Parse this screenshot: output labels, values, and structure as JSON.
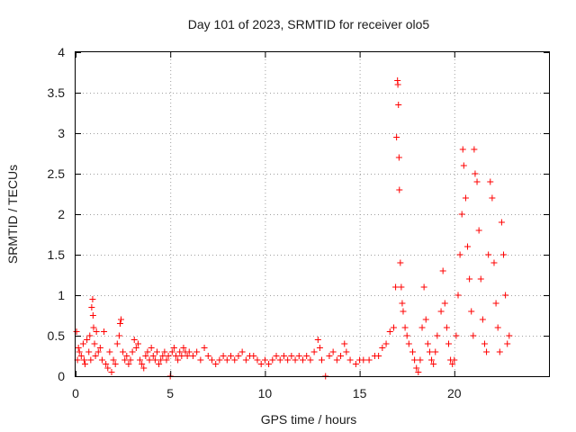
{
  "chart_data": {
    "type": "scatter",
    "title": "Day 101 of 2023, SRMTID for receiver olo5",
    "xlabel": "GPS time / hours",
    "ylabel": "SRMTID / TECUs",
    "xlim": [
      0,
      25
    ],
    "ylim": [
      0,
      4
    ],
    "xticks": [
      0,
      5,
      10,
      15,
      20
    ],
    "xtick_labels": [
      "0",
      "5",
      "10",
      "15",
      "20"
    ],
    "yticks": [
      0,
      0.5,
      1,
      1.5,
      2,
      2.5,
      3,
      3.5,
      4
    ],
    "ytick_labels": [
      "0",
      "0.5",
      "1",
      "1.5",
      "2",
      "2.5",
      "3",
      "3.5",
      "4"
    ],
    "grid": true,
    "marker": "+",
    "color": "#ff0000",
    "series": [
      {
        "name": "olo5",
        "points": [
          [
            0.05,
            0.55
          ],
          [
            0.1,
            0.2
          ],
          [
            0.15,
            0.35
          ],
          [
            0.2,
            0.3
          ],
          [
            0.3,
            0.25
          ],
          [
            0.4,
            0.4
          ],
          [
            0.45,
            0.2
          ],
          [
            0.5,
            0.15
          ],
          [
            0.6,
            0.45
          ],
          [
            0.7,
            0.3
          ],
          [
            0.75,
            0.5
          ],
          [
            0.8,
            0.2
          ],
          [
            0.85,
            0.85
          ],
          [
            0.9,
            0.95
          ],
          [
            0.92,
            0.75
          ],
          [
            0.95,
            0.6
          ],
          [
            1.0,
            0.4
          ],
          [
            1.05,
            0.25
          ],
          [
            1.1,
            0.55
          ],
          [
            1.2,
            0.3
          ],
          [
            1.3,
            0.35
          ],
          [
            1.4,
            0.2
          ],
          [
            1.5,
            0.55
          ],
          [
            1.6,
            0.15
          ],
          [
            1.7,
            0.1
          ],
          [
            1.8,
            0.3
          ],
          [
            1.9,
            0.05
          ],
          [
            2.0,
            0.2
          ],
          [
            2.1,
            0.15
          ],
          [
            2.2,
            0.4
          ],
          [
            2.3,
            0.5
          ],
          [
            2.35,
            0.65
          ],
          [
            2.4,
            0.7
          ],
          [
            2.5,
            0.3
          ],
          [
            2.6,
            0.2
          ],
          [
            2.7,
            0.25
          ],
          [
            2.8,
            0.15
          ],
          [
            2.9,
            0.2
          ],
          [
            3.0,
            0.3
          ],
          [
            3.1,
            0.45
          ],
          [
            3.2,
            0.35
          ],
          [
            3.3,
            0.4
          ],
          [
            3.4,
            0.2
          ],
          [
            3.5,
            0.15
          ],
          [
            3.6,
            0.1
          ],
          [
            3.7,
            0.25
          ],
          [
            3.8,
            0.3
          ],
          [
            3.9,
            0.2
          ],
          [
            4.0,
            0.35
          ],
          [
            4.1,
            0.25
          ],
          [
            4.2,
            0.2
          ],
          [
            4.3,
            0.3
          ],
          [
            4.4,
            0.15
          ],
          [
            4.5,
            0.2
          ],
          [
            4.6,
            0.25
          ],
          [
            4.7,
            0.3
          ],
          [
            4.8,
            0.2
          ],
          [
            4.9,
            0.25
          ],
          [
            5.0,
            0.0
          ],
          [
            5.1,
            0.3
          ],
          [
            5.2,
            0.35
          ],
          [
            5.3,
            0.25
          ],
          [
            5.4,
            0.2
          ],
          [
            5.5,
            0.3
          ],
          [
            5.6,
            0.25
          ],
          [
            5.7,
            0.35
          ],
          [
            5.8,
            0.3
          ],
          [
            5.9,
            0.25
          ],
          [
            6.0,
            0.3
          ],
          [
            6.2,
            0.25
          ],
          [
            6.4,
            0.3
          ],
          [
            6.6,
            0.2
          ],
          [
            6.8,
            0.35
          ],
          [
            7.0,
            0.25
          ],
          [
            7.2,
            0.2
          ],
          [
            7.4,
            0.15
          ],
          [
            7.6,
            0.2
          ],
          [
            7.8,
            0.25
          ],
          [
            8.0,
            0.2
          ],
          [
            8.2,
            0.25
          ],
          [
            8.4,
            0.2
          ],
          [
            8.6,
            0.25
          ],
          [
            8.8,
            0.3
          ],
          [
            9.0,
            0.2
          ],
          [
            9.2,
            0.25
          ],
          [
            9.4,
            0.25
          ],
          [
            9.6,
            0.2
          ],
          [
            9.8,
            0.15
          ],
          [
            10.0,
            0.2
          ],
          [
            10.2,
            0.15
          ],
          [
            10.4,
            0.2
          ],
          [
            10.6,
            0.25
          ],
          [
            10.8,
            0.2
          ],
          [
            11.0,
            0.25
          ],
          [
            11.2,
            0.2
          ],
          [
            11.4,
            0.25
          ],
          [
            11.6,
            0.2
          ],
          [
            11.8,
            0.25
          ],
          [
            12.0,
            0.2
          ],
          [
            12.2,
            0.25
          ],
          [
            12.4,
            0.2
          ],
          [
            12.6,
            0.3
          ],
          [
            12.8,
            0.45
          ],
          [
            12.9,
            0.35
          ],
          [
            13.0,
            0.2
          ],
          [
            13.2,
            0.0
          ],
          [
            13.4,
            0.25
          ],
          [
            13.6,
            0.3
          ],
          [
            13.8,
            0.2
          ],
          [
            14.0,
            0.25
          ],
          [
            14.2,
            0.4
          ],
          [
            14.3,
            0.3
          ],
          [
            14.5,
            0.2
          ],
          [
            14.8,
            0.15
          ],
          [
            15.0,
            0.2
          ],
          [
            15.2,
            0.2
          ],
          [
            15.5,
            0.2
          ],
          [
            15.8,
            0.25
          ],
          [
            16.0,
            0.25
          ],
          [
            16.2,
            0.35
          ],
          [
            16.4,
            0.4
          ],
          [
            16.6,
            0.55
          ],
          [
            16.8,
            0.6
          ],
          [
            16.9,
            1.1
          ],
          [
            16.95,
            2.95
          ],
          [
            17.0,
            3.65
          ],
          [
            17.02,
            3.6
          ],
          [
            17.05,
            3.35
          ],
          [
            17.08,
            2.7
          ],
          [
            17.1,
            2.3
          ],
          [
            17.15,
            1.4
          ],
          [
            17.2,
            1.1
          ],
          [
            17.25,
            0.9
          ],
          [
            17.3,
            0.8
          ],
          [
            17.4,
            0.6
          ],
          [
            17.5,
            0.5
          ],
          [
            17.6,
            0.4
          ],
          [
            17.8,
            0.3
          ],
          [
            17.9,
            0.2
          ],
          [
            18.0,
            0.1
          ],
          [
            18.1,
            0.05
          ],
          [
            18.2,
            0.2
          ],
          [
            18.3,
            0.6
          ],
          [
            18.4,
            1.1
          ],
          [
            18.5,
            0.7
          ],
          [
            18.6,
            0.4
          ],
          [
            18.7,
            0.3
          ],
          [
            18.8,
            0.2
          ],
          [
            18.9,
            0.15
          ],
          [
            19.0,
            0.3
          ],
          [
            19.1,
            0.5
          ],
          [
            19.3,
            0.8
          ],
          [
            19.4,
            1.3
          ],
          [
            19.5,
            0.9
          ],
          [
            19.6,
            0.6
          ],
          [
            19.7,
            0.4
          ],
          [
            19.8,
            0.2
          ],
          [
            19.9,
            0.15
          ],
          [
            20.0,
            0.2
          ],
          [
            20.1,
            0.5
          ],
          [
            20.2,
            1.0
          ],
          [
            20.3,
            1.5
          ],
          [
            20.4,
            2.0
          ],
          [
            20.45,
            2.8
          ],
          [
            20.5,
            2.6
          ],
          [
            20.6,
            2.2
          ],
          [
            20.7,
            1.6
          ],
          [
            20.8,
            1.2
          ],
          [
            20.9,
            0.8
          ],
          [
            21.0,
            0.5
          ],
          [
            21.05,
            2.8
          ],
          [
            21.1,
            2.5
          ],
          [
            21.2,
            2.4
          ],
          [
            21.3,
            1.8
          ],
          [
            21.4,
            1.2
          ],
          [
            21.5,
            0.7
          ],
          [
            21.6,
            0.4
          ],
          [
            21.7,
            0.3
          ],
          [
            21.8,
            1.5
          ],
          [
            21.9,
            2.4
          ],
          [
            22.0,
            2.2
          ],
          [
            22.1,
            1.4
          ],
          [
            22.2,
            0.9
          ],
          [
            22.3,
            0.6
          ],
          [
            22.4,
            0.3
          ],
          [
            22.5,
            1.9
          ],
          [
            22.6,
            1.5
          ],
          [
            22.7,
            1.0
          ],
          [
            22.8,
            0.4
          ],
          [
            22.9,
            0.5
          ]
        ]
      }
    ]
  }
}
